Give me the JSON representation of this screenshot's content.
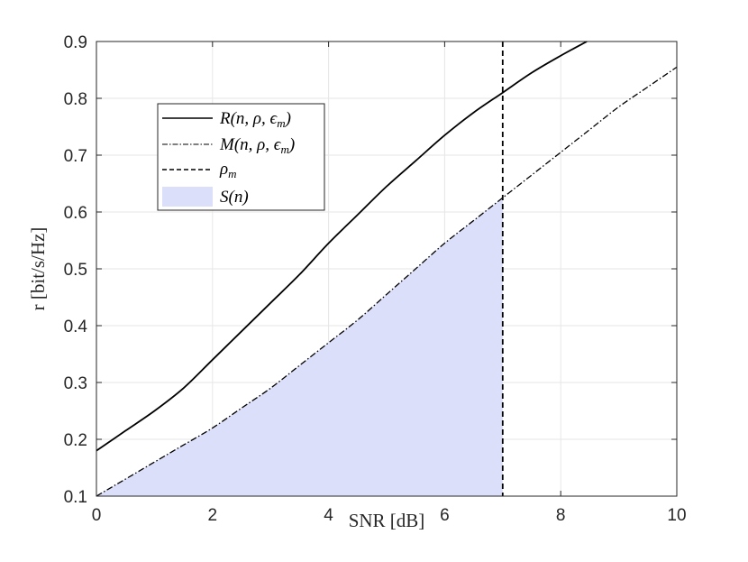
{
  "chart_data": {
    "type": "line",
    "title": "",
    "xlabel": "SNR [dB]",
    "ylabel": "r [bit/s/Hz]",
    "xlim": [
      0,
      10
    ],
    "ylim": [
      0.1,
      0.9
    ],
    "xticks": [
      "0",
      "2",
      "4",
      "6",
      "8",
      "10"
    ],
    "yticks": [
      "0.1",
      "0.2",
      "0.3",
      "0.4",
      "0.5",
      "0.6",
      "0.7",
      "0.8",
      "0.9"
    ],
    "grid": true,
    "legend_position": "upper-left",
    "series": [
      {
        "name": "R(n, ρ, ϵm)",
        "style": "solid",
        "color": "#000000",
        "x": [
          0,
          0.5,
          1,
          1.5,
          2,
          2.5,
          3,
          3.5,
          4,
          4.5,
          5,
          5.5,
          6,
          6.5,
          7,
          7.5,
          8,
          8.45
        ],
        "y": [
          0.18,
          0.215,
          0.25,
          0.29,
          0.34,
          0.39,
          0.44,
          0.49,
          0.545,
          0.595,
          0.645,
          0.69,
          0.735,
          0.775,
          0.81,
          0.845,
          0.875,
          0.9
        ]
      },
      {
        "name": "M(n, ρ, ϵm)",
        "style": "dashdot",
        "color": "#000000",
        "x": [
          0,
          0.5,
          1,
          1.5,
          2,
          2.5,
          3,
          3.5,
          4,
          4.5,
          5,
          5.5,
          6,
          6.5,
          7,
          7.5,
          8,
          8.5,
          9,
          9.5,
          10
        ],
        "y": [
          0.1,
          0.13,
          0.16,
          0.19,
          0.22,
          0.255,
          0.29,
          0.33,
          0.37,
          0.41,
          0.455,
          0.5,
          0.545,
          0.585,
          0.625,
          0.665,
          0.705,
          0.745,
          0.785,
          0.82,
          0.855
        ]
      }
    ],
    "vertical_line": {
      "name": "ρm",
      "x": 7,
      "style": "dashed",
      "color": "#000000"
    },
    "shaded_area": {
      "name": "S(n)",
      "under_series": "M(n, ρ, ϵm)",
      "x_from": 0,
      "x_to": 7,
      "color": "#dcdffa"
    }
  },
  "legend": {
    "entries": [
      {
        "label_main": "R(n, ρ, ϵ",
        "label_sub": "m",
        "label_tail": ")"
      },
      {
        "label_main": "M(n, ρ, ϵ",
        "label_sub": "m",
        "label_tail": ")"
      },
      {
        "label_main": "ρ",
        "label_sub": "m",
        "label_tail": ""
      },
      {
        "label_main": "S(n)",
        "label_sub": "",
        "label_tail": ""
      }
    ]
  }
}
